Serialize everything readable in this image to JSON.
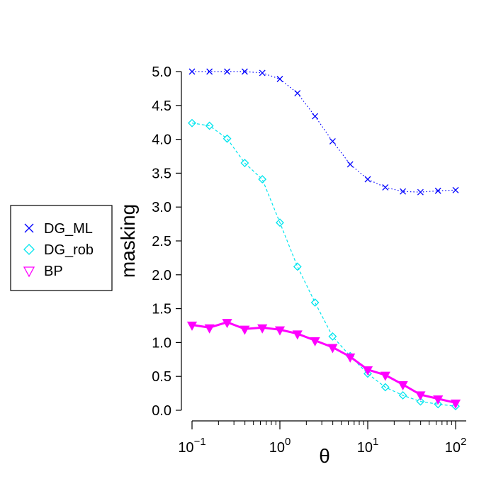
{
  "chart_data": {
    "type": "line",
    "xlabel": "θ",
    "ylabel": "masking",
    "x_scale": "log10",
    "xlim": [
      0.1,
      100
    ],
    "ylim": [
      0,
      5
    ],
    "x_ticks": [
      {
        "value": 0.1,
        "base": "10",
        "exp": "−1"
      },
      {
        "value": 1,
        "base": "10",
        "exp": "0"
      },
      {
        "value": 10,
        "base": "10",
        "exp": "1"
      },
      {
        "value": 100,
        "base": "10",
        "exp": "2"
      }
    ],
    "y_ticks": [
      "0.0",
      "0.5",
      "1.0",
      "1.5",
      "2.0",
      "2.5",
      "3.0",
      "3.5",
      "4.0",
      "4.5",
      "5.0"
    ],
    "x": [
      0.1,
      0.158,
      0.251,
      0.398,
      0.631,
      1.0,
      1.585,
      2.512,
      3.981,
      6.31,
      10.0,
      15.85,
      25.12,
      39.81,
      63.1,
      100.0
    ],
    "series": [
      {
        "name": "DG_ML",
        "color": "#0000ff",
        "marker": "cross",
        "line_style": "dotted",
        "values": [
          5.0,
          5.0,
          5.0,
          5.0,
          4.98,
          4.89,
          4.68,
          4.34,
          3.97,
          3.63,
          3.41,
          3.29,
          3.23,
          3.22,
          3.24,
          3.25
        ]
      },
      {
        "name": "DG_rob",
        "color": "#00e5ee",
        "marker": "diamond",
        "line_style": "dashed",
        "values": [
          4.24,
          4.2,
          4.01,
          3.65,
          3.41,
          2.77,
          2.12,
          1.59,
          1.09,
          0.8,
          0.54,
          0.34,
          0.22,
          0.13,
          0.09,
          0.06
        ]
      },
      {
        "name": "BP",
        "color": "#ff00ff",
        "marker": "triangle-down",
        "line_style": "solid",
        "values": [
          1.26,
          1.22,
          1.3,
          1.2,
          1.22,
          1.19,
          1.13,
          1.03,
          0.93,
          0.79,
          0.6,
          0.52,
          0.38,
          0.23,
          0.17,
          0.11
        ]
      }
    ],
    "legend_position": "left"
  }
}
